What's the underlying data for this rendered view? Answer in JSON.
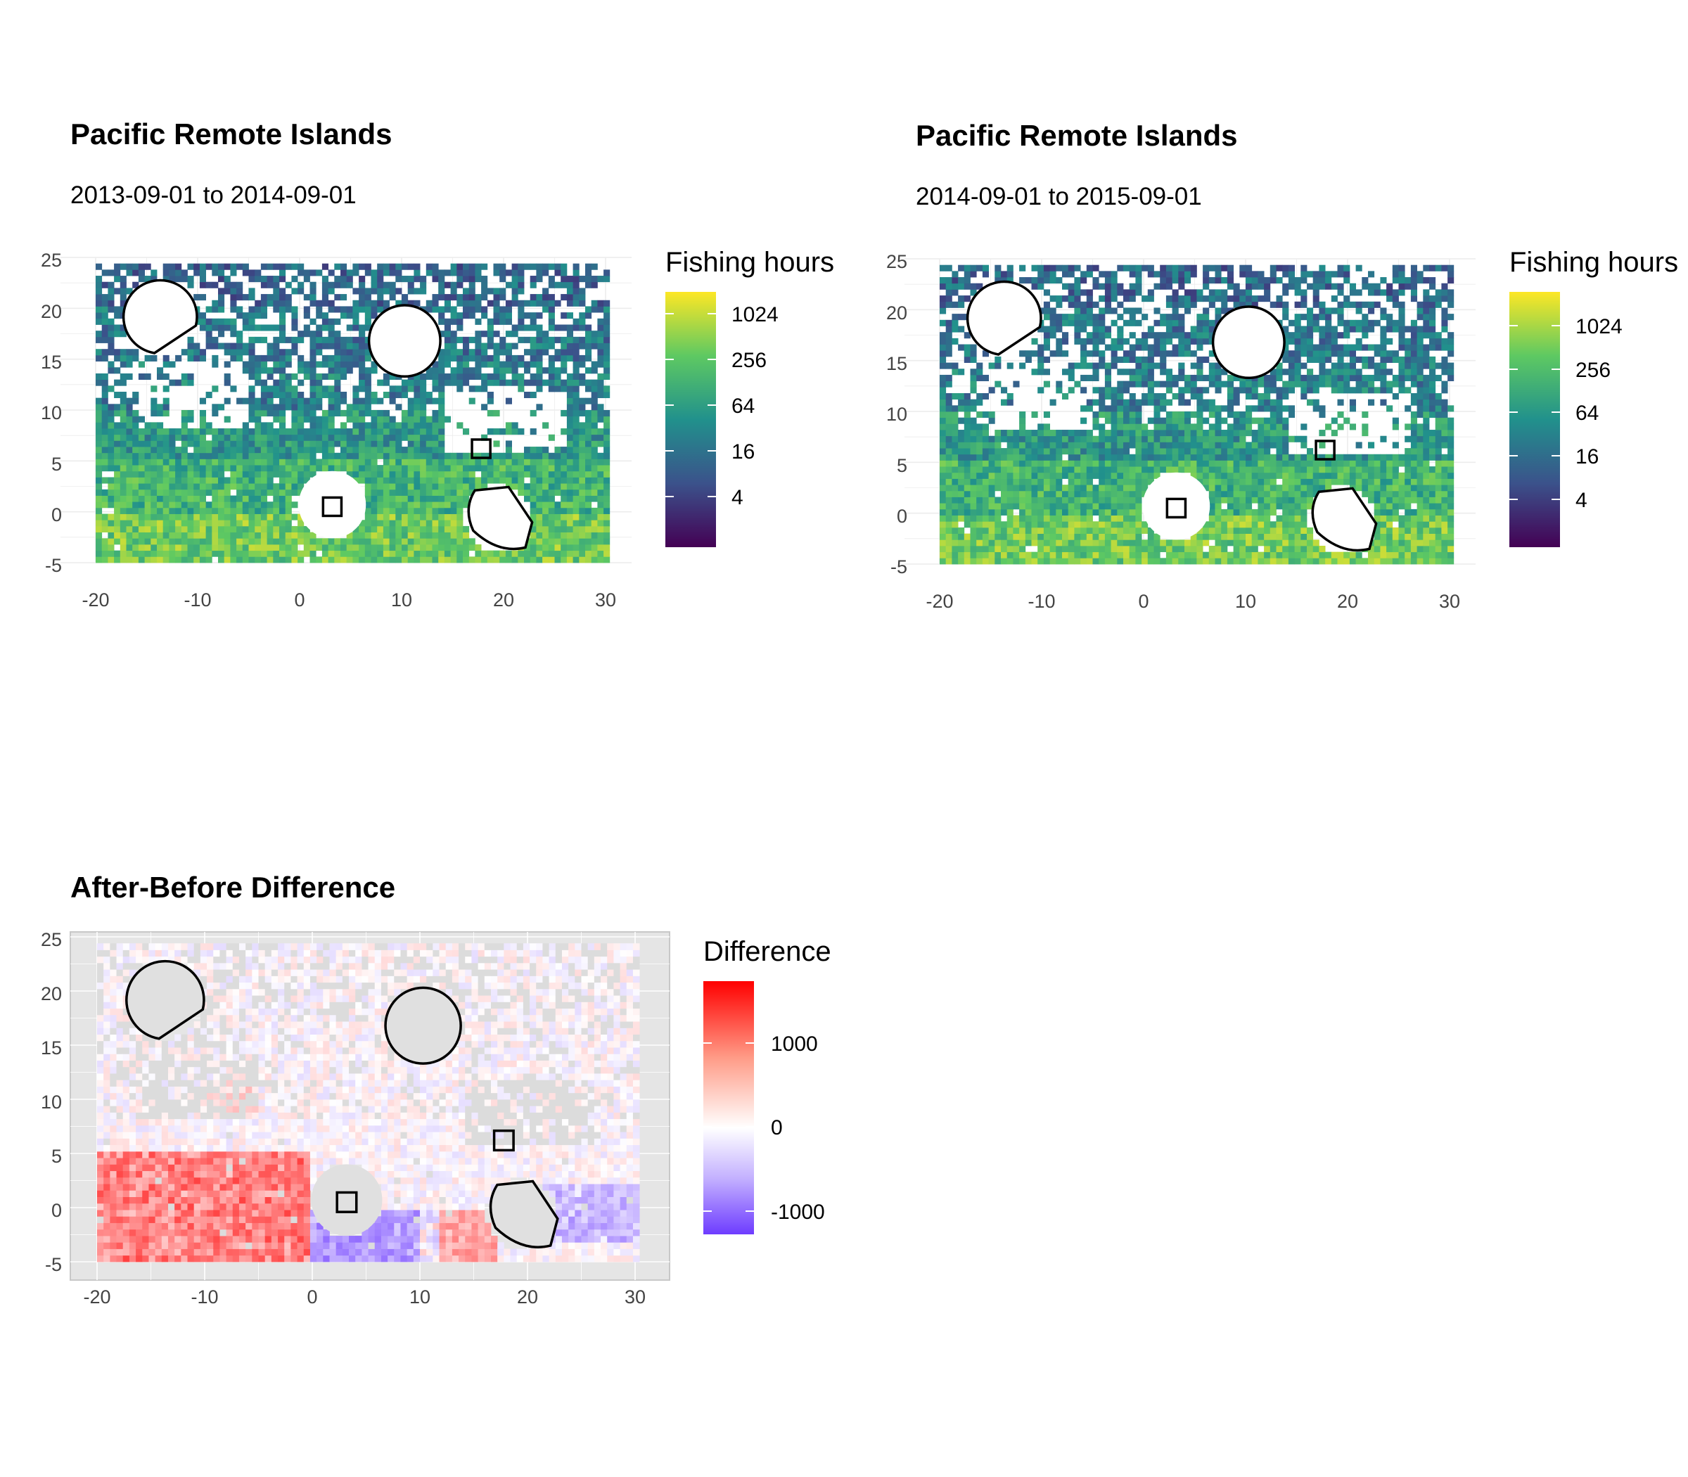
{
  "chart_data": [
    {
      "type": "heatmap",
      "title": "Pacific Remote Islands",
      "subtitle": "2013-09-01 to 2014-09-01",
      "legend_title": "Fishing hours",
      "legend_ticks": [
        "1024",
        "256",
        "64",
        "16",
        "4"
      ],
      "color_scale": "viridis (log2)",
      "xlim": [
        -20,
        30
      ],
      "ylim": [
        -5,
        25
      ],
      "x_ticks": [
        "-20",
        "-10",
        "0",
        "10",
        "20",
        "30"
      ],
      "y_ticks": [
        "25",
        "20",
        "15",
        "10",
        "5",
        "0",
        "-5"
      ],
      "grid": true,
      "legend_position": "right",
      "summary_levels_log2_hours": [
        {
          "lat_band": [
            20,
            25
          ],
          "level": 4
        },
        {
          "lat_band": [
            10,
            20
          ],
          "level": 5
        },
        {
          "lat_band": [
            5,
            10
          ],
          "level": 6
        },
        {
          "lat_band": [
            0,
            5
          ],
          "level": 7.5
        },
        {
          "lat_band": [
            -5,
            0
          ],
          "level": 8.5
        }
      ]
    },
    {
      "type": "heatmap",
      "title": "Pacific Remote Islands",
      "subtitle": "2014-09-01 to 2015-09-01",
      "legend_title": "Fishing hours",
      "legend_ticks": [
        "1024",
        "256",
        "64",
        "16",
        "4"
      ],
      "color_scale": "viridis (log2)",
      "xlim": [
        -20,
        30
      ],
      "ylim": [
        -5,
        25
      ],
      "x_ticks": [
        "-20",
        "-10",
        "0",
        "10",
        "20",
        "30"
      ],
      "y_ticks": [
        "25",
        "20",
        "15",
        "10",
        "5",
        "0",
        "-5"
      ],
      "grid": true,
      "legend_position": "right",
      "summary_levels_log2_hours": [
        {
          "lat_band": [
            20,
            25
          ],
          "level": 4
        },
        {
          "lat_band": [
            10,
            20
          ],
          "level": 5
        },
        {
          "lat_band": [
            5,
            10
          ],
          "level": 6
        },
        {
          "lat_band": [
            0,
            5
          ],
          "level": 7.5
        },
        {
          "lat_band": [
            -5,
            0
          ],
          "level": 8.5
        }
      ]
    },
    {
      "type": "heatmap",
      "title": "After-Before Difference",
      "legend_title": "Difference",
      "legend_ticks": [
        "1000",
        "0",
        "-1000"
      ],
      "color_scale": "blue-white-red diverging",
      "value_range": [
        -1300,
        1700
      ],
      "xlim": [
        -20,
        30
      ],
      "ylim": [
        -5,
        25
      ],
      "x_ticks": [
        "-20",
        "-10",
        "0",
        "10",
        "20",
        "30"
      ],
      "y_ticks": [
        "25",
        "20",
        "15",
        "10",
        "5",
        "0",
        "-5"
      ],
      "grid": true,
      "legend_position": "right",
      "summary_differences": [
        {
          "region": "lon -20 to 0, lat -5 to 5",
          "value": 600
        },
        {
          "region": "lon 0 to 12, lat -5 to 0",
          "value": -500
        },
        {
          "region": "lon 18 to 30, lat -3 to 2",
          "value": -400
        }
      ]
    }
  ],
  "overlays": {
    "protected_areas": [
      {
        "name": "circle-north-west",
        "center": [
          -13.7,
          19.2
        ],
        "radius": 3.6
      },
      {
        "name": "circle-north",
        "center": [
          10.3,
          16.8
        ],
        "radius": 3.5
      },
      {
        "name": "circle-south-west",
        "center": [
          3.2,
          0.7
        ],
        "radius": 3.3
      },
      {
        "name": "square-center",
        "center": [
          3.2,
          0.5
        ],
        "half_size": 0.9
      },
      {
        "name": "square-east",
        "center": [
          17.8,
          6.2
        ],
        "half_size": 0.9
      },
      {
        "name": "blob-south-east",
        "center": [
          19.5,
          -0.7
        ],
        "radius": 3.3
      }
    ]
  },
  "colors": {
    "viridis": [
      "#440154",
      "#3b528b",
      "#21918c",
      "#5ec962",
      "#fde725"
    ],
    "diff_low": "#6e3cff",
    "diff_mid": "#ffffff",
    "diff_high": "#ff0000",
    "panel_grey": "#e5e5e5",
    "missing_cell": "#dcdcdc"
  }
}
